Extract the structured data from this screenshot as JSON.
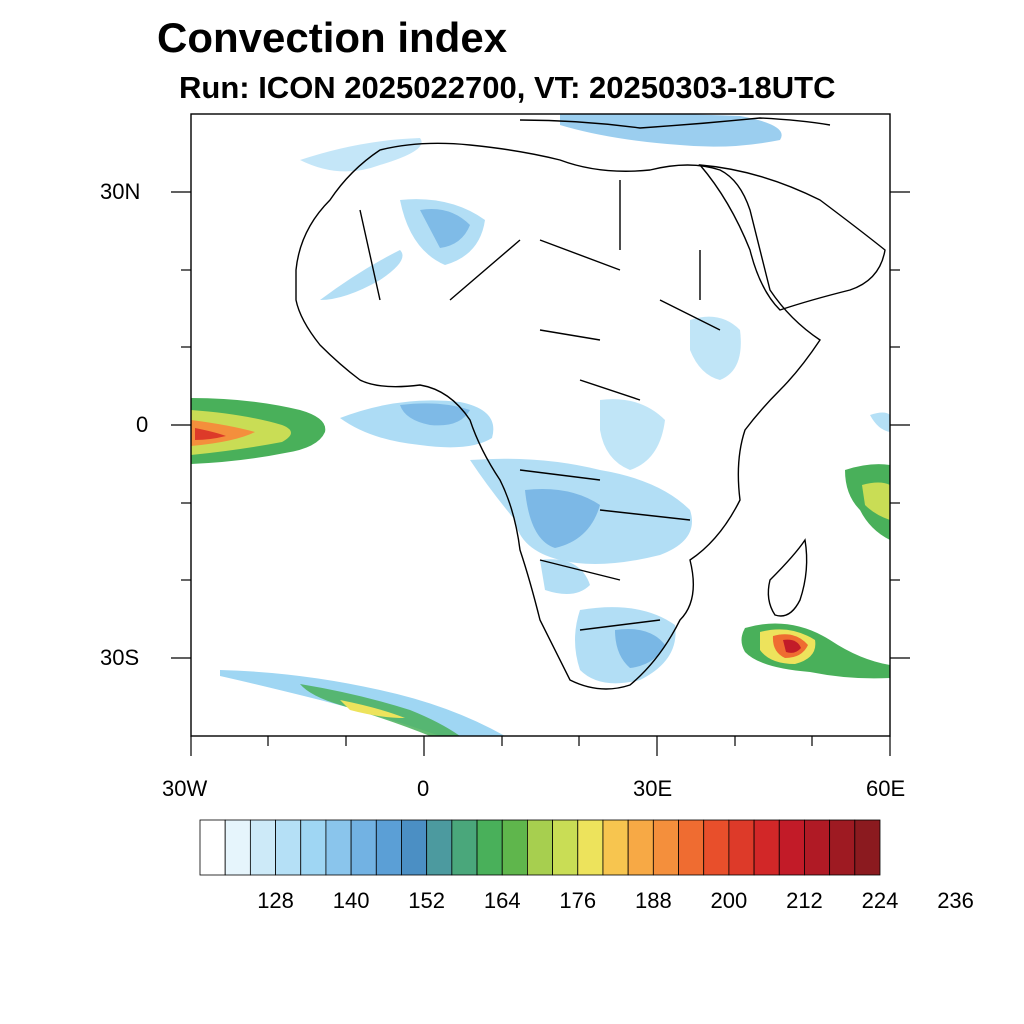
{
  "title": "Convection index",
  "subtitle": "Run: ICON 2025022700,  VT: 20250303-18UTC",
  "map": {
    "lon_range": [
      -30,
      60
    ],
    "lat_range": [
      -40,
      40
    ],
    "lon_labels": [
      "30W",
      "0",
      "30E",
      "60E"
    ],
    "lat_labels": [
      "30N",
      "0",
      "30S"
    ]
  },
  "colorbar": {
    "colors": [
      "#ffffff",
      "#e6f5fc",
      "#cdeaf8",
      "#b5e0f6",
      "#9fd6f3",
      "#8ac5ec",
      "#72b2e3",
      "#5b9fd6",
      "#4b8fc4",
      "#4c9a9f",
      "#4aa77b",
      "#49b05a",
      "#5fb64c",
      "#a7cf4f",
      "#c9dd55",
      "#ede35c",
      "#f7c54f",
      "#f7a945",
      "#f48f3c",
      "#ef6c31",
      "#e84f2b",
      "#dd3a29",
      "#d22728",
      "#c21b28",
      "#b01a25",
      "#9e1a22",
      "#8b1a1f"
    ],
    "tick_labels": [
      "128",
      "140",
      "152",
      "164",
      "176",
      "188",
      "200",
      "212",
      "224",
      "236"
    ]
  }
}
